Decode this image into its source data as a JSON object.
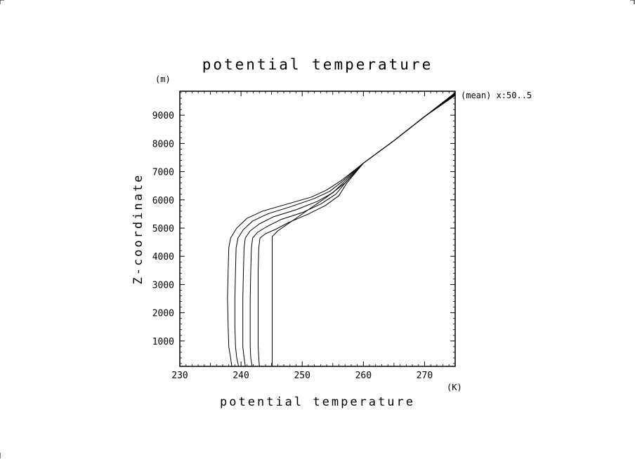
{
  "chart_data": {
    "type": "line",
    "title": "potential temperature",
    "xlabel": "potential temperature",
    "ylabel": "Z-coordinate",
    "x_unit": "(K)",
    "y_unit": "(m)",
    "xlim": [
      230,
      275
    ],
    "ylim": [
      100,
      9850
    ],
    "x_ticks": [
      230,
      240,
      250,
      260,
      270
    ],
    "y_ticks": [
      1000,
      2000,
      3000,
      4000,
      5000,
      6000,
      7000,
      8000,
      9000
    ],
    "grid": false,
    "annotation": "(mean) x:50..5",
    "series": [
      {
        "values": [
          [
            238.5,
            100
          ],
          [
            238.3,
            400
          ],
          [
            238.0,
            800
          ],
          [
            237.9,
            1500
          ],
          [
            237.8,
            2500
          ],
          [
            237.9,
            3500
          ],
          [
            238.0,
            4300
          ],
          [
            238.3,
            4650
          ],
          [
            239.3,
            5000
          ],
          [
            241.0,
            5350
          ],
          [
            243.5,
            5600
          ],
          [
            247.5,
            5850
          ],
          [
            251.5,
            6100
          ],
          [
            254.0,
            6350
          ],
          [
            256.5,
            6700
          ],
          [
            260.0,
            7300
          ],
          [
            265.0,
            8100
          ],
          [
            270.0,
            8950
          ],
          [
            275.0,
            9800
          ]
        ]
      },
      {
        "values": [
          [
            239.6,
            100
          ],
          [
            239.3,
            400
          ],
          [
            239.1,
            800
          ],
          [
            239.0,
            1500
          ],
          [
            239.0,
            2500
          ],
          [
            239.1,
            3500
          ],
          [
            239.2,
            4300
          ],
          [
            239.5,
            4650
          ],
          [
            240.4,
            4950
          ],
          [
            241.9,
            5250
          ],
          [
            244.3,
            5500
          ],
          [
            248.0,
            5750
          ],
          [
            252.0,
            6050
          ],
          [
            254.5,
            6300
          ],
          [
            256.7,
            6680
          ],
          [
            260.0,
            7300
          ],
          [
            265.0,
            8100
          ],
          [
            270.0,
            8950
          ],
          [
            275.0,
            9780
          ]
        ]
      },
      {
        "values": [
          [
            240.7,
            100
          ],
          [
            240.5,
            400
          ],
          [
            240.3,
            800
          ],
          [
            240.3,
            1500
          ],
          [
            240.3,
            2500
          ],
          [
            240.4,
            3500
          ],
          [
            240.5,
            4300
          ],
          [
            240.7,
            4650
          ],
          [
            241.5,
            4900
          ],
          [
            243.0,
            5150
          ],
          [
            245.3,
            5400
          ],
          [
            249.0,
            5650
          ],
          [
            252.5,
            5950
          ],
          [
            255.0,
            6250
          ],
          [
            256.9,
            6650
          ],
          [
            260.0,
            7300
          ],
          [
            265.0,
            8100
          ],
          [
            270.0,
            8950
          ],
          [
            275.0,
            9760
          ]
        ]
      },
      {
        "values": [
          [
            241.8,
            100
          ],
          [
            241.6,
            400
          ],
          [
            241.5,
            800
          ],
          [
            241.5,
            1500
          ],
          [
            241.5,
            2500
          ],
          [
            241.6,
            3500
          ],
          [
            241.7,
            4300
          ],
          [
            241.9,
            4650
          ],
          [
            242.7,
            4850
          ],
          [
            244.2,
            5050
          ],
          [
            246.5,
            5300
          ],
          [
            250.0,
            5550
          ],
          [
            253.0,
            5850
          ],
          [
            255.5,
            6200
          ],
          [
            257.1,
            6620
          ],
          [
            260.0,
            7300
          ],
          [
            265.0,
            8100
          ],
          [
            270.0,
            8950
          ],
          [
            275.0,
            9740
          ]
        ]
      },
      {
        "values": [
          [
            243.0,
            100
          ],
          [
            242.9,
            400
          ],
          [
            242.8,
            800
          ],
          [
            242.8,
            1500
          ],
          [
            242.8,
            2500
          ],
          [
            242.8,
            3500
          ],
          [
            242.9,
            4300
          ],
          [
            243.1,
            4650
          ],
          [
            244.0,
            4800
          ],
          [
            245.6,
            4950
          ],
          [
            247.8,
            5200
          ],
          [
            251.0,
            5500
          ],
          [
            253.8,
            5800
          ],
          [
            256.0,
            6150
          ],
          [
            257.3,
            6600
          ],
          [
            260.0,
            7300
          ],
          [
            265.0,
            8100
          ],
          [
            270.0,
            8950
          ],
          [
            275.0,
            9720
          ]
        ]
      },
      {
        "values": [
          [
            245.1,
            100
          ],
          [
            245.1,
            4700
          ],
          [
            246.0,
            4900
          ],
          [
            248.0,
            5200
          ],
          [
            251.0,
            5650
          ],
          [
            254.0,
            6100
          ],
          [
            257.0,
            6600
          ],
          [
            260.0,
            7300
          ],
          [
            265.0,
            8100
          ],
          [
            270.0,
            8950
          ],
          [
            275.0,
            9700
          ]
        ]
      }
    ]
  },
  "colors": {
    "line": "#000000",
    "background": "#ffffff"
  }
}
